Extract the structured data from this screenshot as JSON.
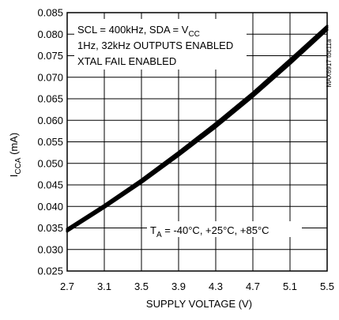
{
  "chart_data": {
    "type": "line",
    "xlabel": "SUPPLY VOLTAGE (V)",
    "ylabel": {
      "main": "I",
      "sub": "CCA",
      "unit": " (mA)"
    },
    "xlim": [
      2.7,
      5.5
    ],
    "ylim": [
      0.025,
      0.085
    ],
    "xticks": [
      "2.7",
      "3.1",
      "3.5",
      "3.9",
      "4.3",
      "4.7",
      "5.1",
      "5.5"
    ],
    "yticks": [
      "0.025",
      "0.030",
      "0.035",
      "0.040",
      "0.045",
      "0.050",
      "0.055",
      "0.060",
      "0.065",
      "0.070",
      "0.075",
      "0.080",
      "0.085"
    ],
    "grid": true,
    "series": [
      {
        "name": "-40°C",
        "x": [
          2.7,
          3.1,
          3.5,
          3.9,
          4.3,
          4.7,
          5.1,
          5.5
        ],
        "y": [
          0.0342,
          0.0397,
          0.0455,
          0.0518,
          0.0584,
          0.0655,
          0.0731,
          0.081
        ]
      },
      {
        "name": "+25°C",
        "x": [
          2.7,
          3.1,
          3.5,
          3.9,
          4.3,
          4.7,
          5.1,
          5.5
        ],
        "y": [
          0.0345,
          0.04,
          0.0459,
          0.0522,
          0.0589,
          0.066,
          0.0736,
          0.0815
        ]
      },
      {
        "name": "+85°C",
        "x": [
          2.7,
          3.1,
          3.5,
          3.9,
          4.3,
          4.7,
          5.1,
          5.5
        ],
        "y": [
          0.0348,
          0.0403,
          0.0462,
          0.0526,
          0.0593,
          0.0664,
          0.0741,
          0.0819
        ]
      }
    ],
    "annotations": {
      "conditions": [
        {
          "pre": "SCL = 400kHz, SDA = V",
          "sub": "CC"
        },
        {
          "pre": "1Hz, 32kHz OUTPUTS ENABLED",
          "sub": ""
        },
        {
          "pre": "XTAL FAIL ENABLED",
          "sub": ""
        }
      ],
      "temperature": {
        "pre": "T",
        "sub": "A",
        "post": " = -40°C, +25°C, +85°C"
      },
      "side_id": "MAX6917 toc11a"
    }
  },
  "colors": {
    "line": "#000000",
    "grid": "#000000",
    "background": "#ffffff"
  }
}
